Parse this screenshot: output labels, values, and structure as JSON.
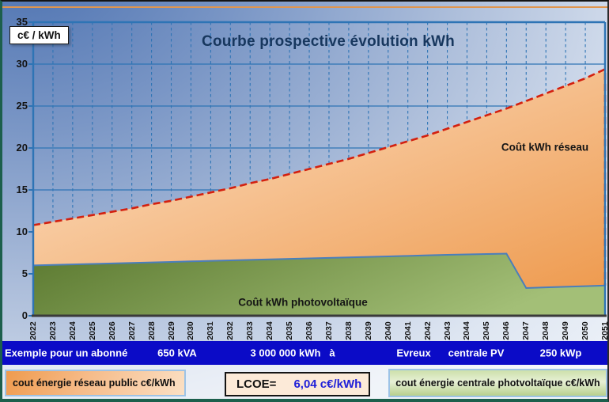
{
  "chart_data": {
    "type": "area",
    "title": "Courbe prospective évolution kWh",
    "y_axis_label": "c€ / kWh",
    "ylim": [
      0,
      35
    ],
    "y_ticks": [
      0,
      5,
      10,
      15,
      20,
      25,
      30,
      35
    ],
    "grid": "on",
    "years": [
      "2022",
      "2023",
      "2024",
      "2025",
      "2026",
      "2027",
      "2028",
      "2029",
      "2030",
      "2031",
      "2032",
      "2033",
      "2034",
      "2035",
      "2036",
      "2037",
      "2038",
      "2039",
      "2040",
      "2041",
      "2042",
      "2043",
      "2044",
      "2045",
      "2046",
      "2047",
      "2048",
      "2049",
      "2050",
      "2051"
    ],
    "series": [
      {
        "name": "Coût kWh réseau",
        "values": [
          10.8,
          11.2,
          11.6,
          12.0,
          12.4,
          12.8,
          13.3,
          13.7,
          14.2,
          14.7,
          15.2,
          15.8,
          16.3,
          16.9,
          17.5,
          18.1,
          18.7,
          19.4,
          20.1,
          20.8,
          21.5,
          22.3,
          23.1,
          23.9,
          24.7,
          25.6,
          26.5,
          27.4,
          28.3,
          29.4
        ],
        "line_style": "dashed-red",
        "fill": "orange-gradient"
      },
      {
        "name": "Coût kWh photovoltaïque",
        "values": [
          6.0,
          6.06,
          6.12,
          6.18,
          6.24,
          6.3,
          6.36,
          6.42,
          6.48,
          6.54,
          6.6,
          6.66,
          6.72,
          6.78,
          6.84,
          6.9,
          6.96,
          7.02,
          7.08,
          7.14,
          7.2,
          7.26,
          7.31,
          7.36,
          7.4,
          3.3,
          3.38,
          3.45,
          3.53,
          3.6
        ],
        "line_style": "solid-blue",
        "fill": "green-gradient"
      }
    ]
  },
  "info_bar": {
    "items": [
      "Exemple pour un abonné",
      "650 kVA",
      "3 000 000 kWh",
      "à",
      "Evreux",
      "centrale PV",
      "250 kWp"
    ]
  },
  "legend": {
    "reseau_label": "cout énergie réseau public c€/kWh",
    "lcoe_label": "LCOE=",
    "lcoe_value": "6,04 c€/kWh",
    "pv_label": "cout énergie centrale photvoltaïque c€/kWh"
  },
  "colors": {
    "grid": "#2e74b5",
    "reseau_line": "#d3200f",
    "reseau_fill_light": "#fde4cc",
    "reseau_fill_deep": "#ee9a4e",
    "pv_line": "#4a7ebb",
    "pv_fill_dark": "#5c7a31",
    "pv_fill_light": "#a3bf77",
    "info_bar_bg": "#0b0bc7",
    "lcoe_value_color": "#2020d8",
    "top_accent": "#e0954d",
    "frame_green": "#1c5f4c"
  }
}
